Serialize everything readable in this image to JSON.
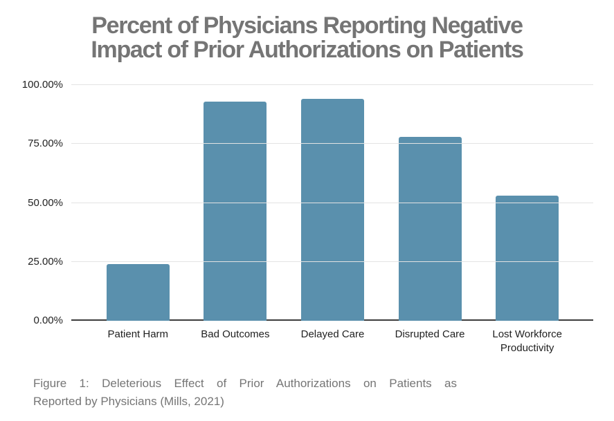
{
  "title_lines": [
    "Percent of Physicians Reporting Negative",
    "Impact of Prior Authorizations on Patients"
  ],
  "chart_data": {
    "type": "bar",
    "title": "Percent of Physicians Reporting Negative Impact of Prior Authorizations on Patients",
    "categories": [
      "Patient Harm",
      "Bad Outcomes",
      "Delayed Care",
      "Disrupted Care",
      "Lost Workforce Productivity"
    ],
    "values": [
      24,
      93,
      94,
      78,
      53
    ],
    "unit": "%",
    "xlabel": "",
    "ylabel": "",
    "ylim": [
      0,
      100
    ],
    "yticks": [
      0,
      25,
      50,
      75,
      100
    ],
    "ytick_labels": [
      "0.00%",
      "25.00%",
      "50.00%",
      "75.00%",
      "100.00%"
    ],
    "grid": true,
    "legend": false,
    "orientation": "vertical"
  },
  "caption_lines": [
    "Figure 1: Deleterious Effect of Prior Authorizations on Patients as",
    "Reported by Physicians (Mills, 2021)"
  ],
  "colors": {
    "background": "#ffffff",
    "title_text": "#757575",
    "caption_text": "#757575",
    "axis_text": "#1f1f1f",
    "gridline": "#e3e3e3",
    "axis_line": "#3c3c3c",
    "bar": "#5a90ad"
  }
}
